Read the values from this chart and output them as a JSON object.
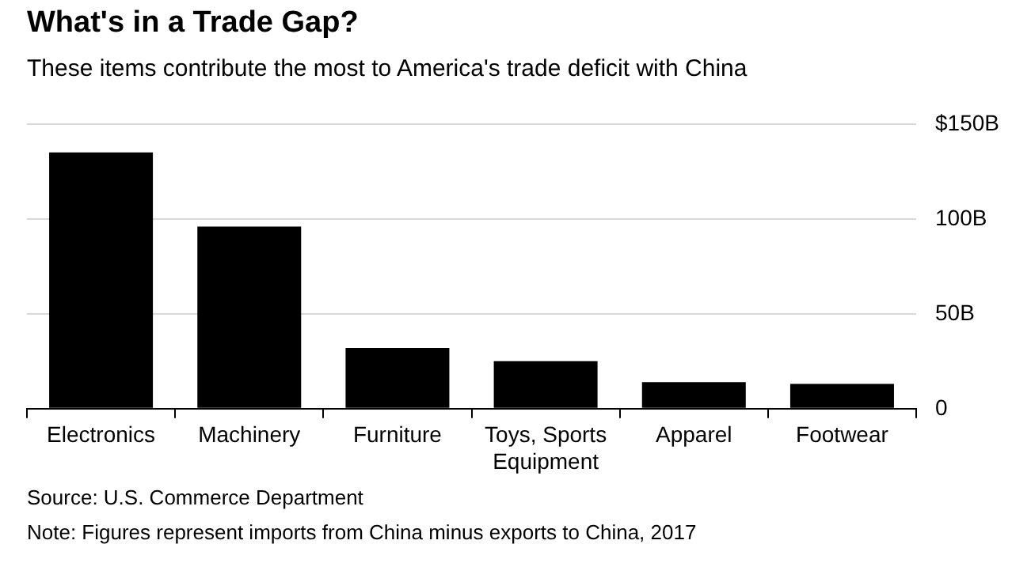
{
  "chart_data": {
    "type": "bar",
    "title": "What's in a Trade Gap?",
    "subtitle": "These items contribute the most to America's trade deficit with China",
    "categories": [
      "Electronics",
      "Machinery",
      "Furniture",
      "Toys, Sports Equipment",
      "Apparel",
      "Footwear"
    ],
    "values": [
      135,
      96,
      32,
      25,
      14,
      13
    ],
    "color": "#000000",
    "ylim": [
      0,
      150
    ],
    "yticks": [
      0,
      {
        "value": 50,
        "label": "50B"
      },
      {
        "value": 100,
        "label": "100B"
      },
      {
        "value": 150,
        "label": "$150B"
      }
    ],
    "grid": "y",
    "legend": false,
    "annotations": [
      "Source: U.S. Commerce Department",
      "Note: Figures represent imports from China minus exports to China, 2017"
    ]
  }
}
